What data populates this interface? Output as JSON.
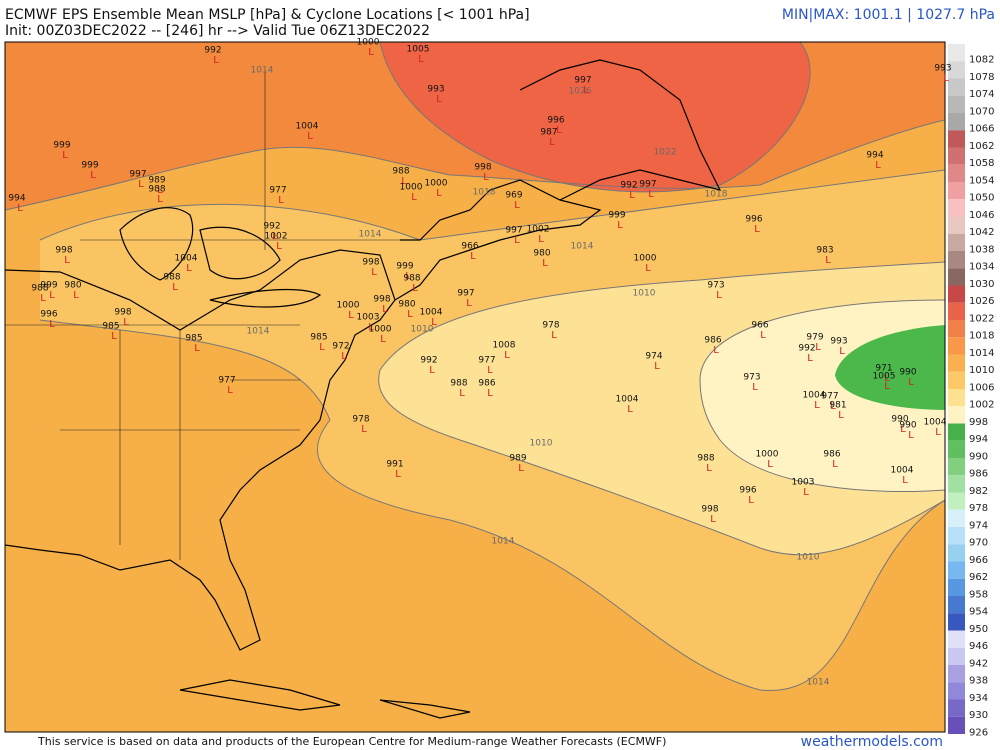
{
  "header": {
    "title": "ECMWF EPS Ensemble Mean MSLP [hPa] & Cyclone Locations [< 1001 hPa]",
    "subtitle": "Init: 00Z03DEC2022 -- [246] hr --> Valid Tue 06Z13DEC2022",
    "range": "MIN|MAX: 1001.1 | 1027.7 hPa"
  },
  "colorbar": {
    "labels": [
      1082,
      1078,
      1074,
      1070,
      1066,
      1062,
      1058,
      1054,
      1050,
      1046,
      1042,
      1038,
      1034,
      1030,
      1026,
      1022,
      1018,
      1014,
      1010,
      1006,
      1002,
      998,
      994,
      990,
      986,
      982,
      978,
      974,
      970,
      966,
      962,
      958,
      954,
      950,
      946,
      942,
      938,
      934,
      930,
      926
    ]
  },
  "contour_labels": [
    1014,
    1018,
    1014,
    1014,
    1010,
    1014,
    1010,
    1010,
    1014,
    1010,
    1014,
    1022,
    1026,
    1018
  ],
  "cyclone_marker": "L",
  "cyclones": [
    992,
    1005,
    1000,
    993,
    997,
    996,
    987,
    993,
    1004,
    999,
    999,
    997,
    989,
    988,
    994,
    977,
    988,
    1000,
    1000,
    998,
    969,
    994,
    992,
    997,
    999,
    996,
    992,
    1002,
    1004,
    998,
    997,
    1002,
    966,
    980,
    1000,
    983,
    998,
    999,
    988,
    988,
    988,
    999,
    980,
    973,
    997,
    996,
    998,
    1000,
    998,
    980,
    1004,
    1003,
    1000,
    985,
    978,
    966,
    979,
    993,
    985,
    985,
    972,
    1008,
    992,
    986,
    992,
    977,
    974,
    971,
    990,
    1005,
    977,
    988,
    986,
    973,
    1004,
    977,
    1004,
    981,
    990,
    990,
    1004,
    978,
    986,
    1000,
    989,
    988,
    991,
    1004,
    1003,
    996,
    998
  ],
  "footer": {
    "credit": "This service is based on data and products of the European Centre for Medium-range Weather Forecasts (ECMWF)",
    "site": "weathermodels.com"
  }
}
